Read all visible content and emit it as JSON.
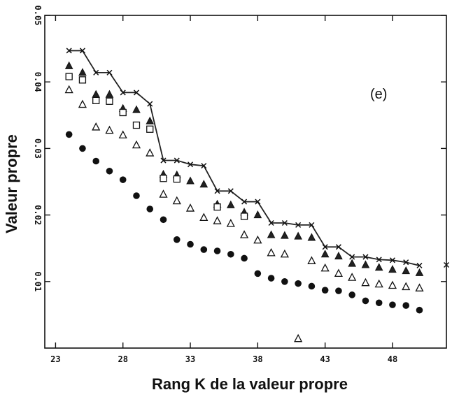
{
  "chart_data": {
    "type": "scatter",
    "annotation": "(e)",
    "xlabel": "Rang K  de la valeur propre",
    "ylabel": "Valeur propre",
    "xlim": [
      22.2,
      52.0
    ],
    "ylim": [
      0.0,
      0.05
    ],
    "x_ticks": [
      "23",
      "28",
      "33",
      "38",
      "43",
      "48"
    ],
    "y_ticks": [
      "0.01",
      "0.02",
      "0.03",
      "0.04",
      "0.05"
    ],
    "x_tick_values": [
      23,
      28,
      33,
      38,
      43,
      48
    ],
    "y_tick_values": [
      0.01,
      0.02,
      0.03,
      0.04,
      0.05
    ],
    "grid": false,
    "legend": "none",
    "x": [
      24,
      25,
      26,
      27,
      28,
      29,
      30,
      31,
      32,
      33,
      34,
      35,
      36,
      37,
      38,
      39,
      40,
      41,
      42,
      43,
      44,
      45,
      46,
      47,
      48,
      49,
      50
    ],
    "series": [
      {
        "marker": "x-line",
        "values": [
          0.0447,
          0.0447,
          0.0414,
          0.0414,
          0.0384,
          0.0384,
          0.0367,
          0.0282,
          0.0282,
          0.0276,
          0.0274,
          0.0236,
          0.0236,
          0.022,
          0.022,
          0.0188,
          0.0188,
          0.0185,
          0.0185,
          0.0152,
          0.0152,
          0.0137,
          0.0137,
          0.0133,
          0.0132,
          0.0129,
          0.0124
        ],
        "extra_x": 52.0,
        "extra_value": 0.0125
      },
      {
        "marker": "filled-triangle",
        "values": [
          0.0424,
          0.0414,
          0.0381,
          0.0381,
          0.036,
          0.0358,
          0.0341,
          0.0261,
          0.026,
          0.0251,
          0.0246,
          0.0216,
          0.0215,
          0.0204,
          0.02,
          0.017,
          0.0169,
          0.0168,
          0.0166,
          0.0141,
          0.0138,
          0.0127,
          0.0125,
          0.0121,
          0.0118,
          0.0116,
          0.0113
        ]
      },
      {
        "marker": "open-square",
        "values": [
          0.0408,
          0.0403,
          0.0372,
          0.0371,
          0.0354,
          0.0335,
          0.0329,
          0.0255,
          0.0254,
          null,
          null,
          0.0212,
          null,
          0.0198,
          null,
          null,
          null,
          null,
          null,
          null,
          null,
          null,
          null,
          null,
          null,
          null,
          null
        ]
      },
      {
        "marker": "open-triangle",
        "values": [
          0.0388,
          0.0366,
          0.0332,
          0.0327,
          0.032,
          0.0305,
          0.0293,
          0.0231,
          0.0221,
          0.021,
          0.0196,
          0.0191,
          0.0187,
          0.017,
          0.0162,
          0.0143,
          0.0141,
          0.0014,
          0.0131,
          0.012,
          0.0112,
          0.0106,
          0.0098,
          0.0096,
          0.0094,
          0.0092,
          0.009
        ]
      },
      {
        "marker": "filled-circle",
        "values": [
          0.0321,
          0.03,
          0.0281,
          0.0266,
          0.0253,
          0.0229,
          0.0209,
          0.0193,
          0.0163,
          0.0156,
          0.0148,
          0.0146,
          0.0141,
          0.0135,
          0.0112,
          0.0105,
          0.01,
          0.0097,
          0.0093,
          0.0087,
          0.0086,
          0.008,
          0.0071,
          0.0068,
          0.0065,
          0.0064,
          0.0057
        ]
      }
    ]
  }
}
